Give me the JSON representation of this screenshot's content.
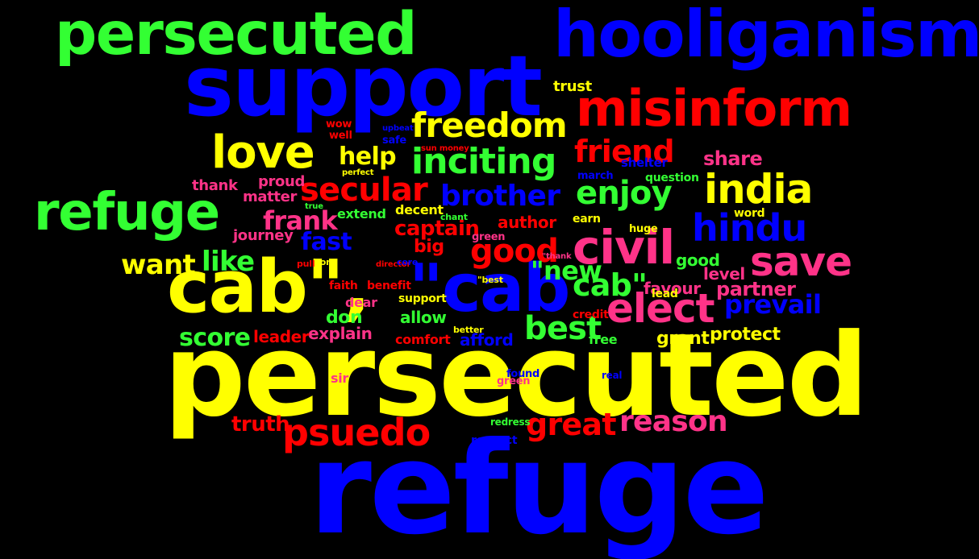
{
  "palette": {
    "background": "#000000",
    "blue": "#0000ff",
    "green": "#33ff33",
    "red": "#ff0000",
    "yellow": "#ffff00",
    "pink": "#ff3388"
  },
  "words": [
    {
      "text": "refuge",
      "color": "#0000ff"
    },
    {
      "text": "persecuted",
      "color": "#ffff00"
    },
    {
      "text": "support",
      "color": "#0000ff"
    },
    {
      "text": "hooliganism",
      "color": "#0000ff"
    },
    {
      "text": "persecuted",
      "color": "#33ff33"
    },
    {
      "text": "cab\",",
      "color": "#ffff00"
    },
    {
      "text": "\"cab",
      "color": "#0000ff"
    },
    {
      "text": "misinform",
      "color": "#ff0000"
    },
    {
      "text": "refuge",
      "color": "#33ff33"
    },
    {
      "text": "love",
      "color": "#ffff00"
    },
    {
      "text": "civil",
      "color": "#ff3388"
    },
    {
      "text": "india",
      "color": "#ffff00"
    },
    {
      "text": "inciting",
      "color": "#33ff33"
    },
    {
      "text": "freedom",
      "color": "#ffff00"
    },
    {
      "text": "friend",
      "color": "#ff0000"
    },
    {
      "text": "hindu",
      "color": "#0000ff"
    },
    {
      "text": "save",
      "color": "#ff3388"
    },
    {
      "text": "elect",
      "color": "#ff3388"
    },
    {
      "text": "psuedo",
      "color": "#ff0000"
    },
    {
      "text": "enjoy",
      "color": "#33ff33"
    },
    {
      "text": "secular",
      "color": "#ff0000"
    },
    {
      "text": "brother",
      "color": "#0000ff"
    },
    {
      "text": "reason",
      "color": "#ff3388"
    },
    {
      "text": "great",
      "color": "#ff0000"
    },
    {
      "text": "good",
      "color": "#ff0000"
    },
    {
      "text": "best",
      "color": "#33ff33"
    },
    {
      "text": "prevail",
      "color": "#0000ff"
    },
    {
      "text": "cab\"",
      "color": "#33ff33"
    },
    {
      "text": "\"new",
      "color": "#33ff33"
    },
    {
      "text": "want",
      "color": "#ffff00"
    },
    {
      "text": "like",
      "color": "#33ff33"
    },
    {
      "text": "frank",
      "color": "#ff3388"
    },
    {
      "text": "help",
      "color": "#ffff00"
    },
    {
      "text": "score",
      "color": "#33ff33"
    },
    {
      "text": "fast",
      "color": "#0000ff"
    },
    {
      "text": "truth",
      "color": "#ff0000"
    },
    {
      "text": "captain",
      "color": "#ff0000"
    },
    {
      "text": "share",
      "color": "#ff3388"
    },
    {
      "text": "partner",
      "color": "#ff3388"
    },
    {
      "text": "grant",
      "color": "#ffff00"
    },
    {
      "text": "protect",
      "color": "#ffff00"
    },
    {
      "text": "favour",
      "color": "#ff3388"
    },
    {
      "text": "level",
      "color": "#ff3388"
    },
    {
      "text": "good",
      "color": "#33ff33"
    },
    {
      "text": "explain",
      "color": "#ff3388"
    },
    {
      "text": "leader",
      "color": "#ff0000"
    },
    {
      "text": "afford",
      "color": "#0000ff"
    },
    {
      "text": "allow",
      "color": "#33ff33"
    },
    {
      "text": "don",
      "color": "#33ff33"
    },
    {
      "text": "big",
      "color": "#ff0000"
    },
    {
      "text": "author",
      "color": "#ff0000"
    },
    {
      "text": "journey",
      "color": "#ff3388"
    },
    {
      "text": "matter",
      "color": "#ff3388"
    },
    {
      "text": "proud",
      "color": "#ff3388"
    },
    {
      "text": "thank",
      "color": "#ff3388"
    },
    {
      "text": "trust",
      "color": "#ffff00"
    },
    {
      "text": "question",
      "color": "#33ff33"
    },
    {
      "text": "word",
      "color": "#ffff00"
    },
    {
      "text": "respect",
      "color": "#0000ff"
    },
    {
      "text": "redress",
      "color": "#33ff33"
    },
    {
      "text": "comfort",
      "color": "#ff0000"
    },
    {
      "text": "credit",
      "color": "#ff0000"
    },
    {
      "text": "free",
      "color": "#33ff33"
    },
    {
      "text": "lead",
      "color": "#ffff00"
    },
    {
      "text": "dear",
      "color": "#ff3388"
    },
    {
      "text": "faith",
      "color": "#ff0000"
    },
    {
      "text": "benefit",
      "color": "#ff0000"
    },
    {
      "text": "support",
      "color": "#ffff00"
    },
    {
      "text": "decent",
      "color": "#ffff00"
    },
    {
      "text": "extend",
      "color": "#33ff33"
    },
    {
      "text": "earn",
      "color": "#ffff00"
    },
    {
      "text": "huge",
      "color": "#ffff00"
    },
    {
      "text": "sir",
      "color": "#ff3388"
    },
    {
      "text": "shelter",
      "color": "#0000ff"
    },
    {
      "text": "march",
      "color": "#0000ff"
    },
    {
      "text": "wow",
      "color": "#ff0000"
    },
    {
      "text": "well",
      "color": "#ff0000"
    },
    {
      "text": "safe",
      "color": "#0000ff"
    },
    {
      "text": "perfect",
      "color": "#ffff00"
    },
    {
      "text": "chant",
      "color": "#33ff33"
    },
    {
      "text": "green",
      "color": "#ff3388"
    },
    {
      "text": "green",
      "color": "#ff3388"
    },
    {
      "text": "iron",
      "color": "#ffff00"
    },
    {
      "text": "pull",
      "color": "#ff0000"
    },
    {
      "text": "director",
      "color": "#ff0000"
    },
    {
      "text": "better",
      "color": "#ffff00"
    },
    {
      "text": "\"best",
      "color": "#ffff00"
    },
    {
      "text": "\"thank",
      "color": "#ff3388"
    },
    {
      "text": "found",
      "color": "#0000ff"
    },
    {
      "text": "real",
      "color": "#0000ff"
    },
    {
      "text": "core",
      "color": "#0000ff"
    },
    {
      "text": "sun money",
      "color": "#ff0000"
    },
    {
      "text": "upbeat",
      "color": "#0000ff"
    },
    {
      "text": "true",
      "color": "#33ff33"
    }
  ]
}
